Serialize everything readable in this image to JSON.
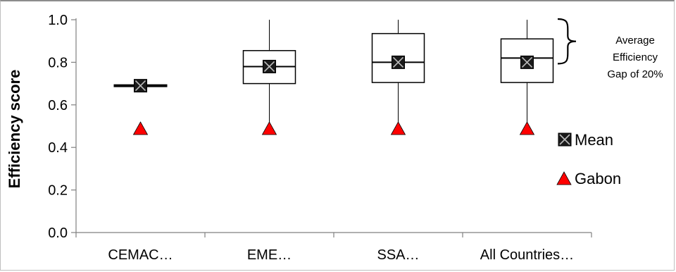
{
  "chart_data": {
    "type": "box",
    "ylabel": "Efficiency score",
    "ylim": [
      0,
      1
    ],
    "yticks": [
      "0.0",
      "0.2",
      "0.4",
      "0.6",
      "0.8",
      "1.0"
    ],
    "categories": [
      "CEMAC…",
      "EME…",
      "SSA…",
      "All Countries…"
    ],
    "boxes": [
      {
        "min": 0.69,
        "q1": 0.69,
        "median": 0.69,
        "q3": 0.69,
        "max": 0.69
      },
      {
        "min": 0.495,
        "q1": 0.7,
        "median": 0.78,
        "q3": 0.855,
        "max": 1.0
      },
      {
        "min": 0.495,
        "q1": 0.705,
        "median": 0.8,
        "q3": 0.935,
        "max": 1.0
      },
      {
        "min": 0.495,
        "q1": 0.705,
        "median": 0.82,
        "q3": 0.91,
        "max": 1.0
      }
    ],
    "series": [
      {
        "name": "Mean",
        "marker": "square-x",
        "color": "#1a1a1a",
        "values": [
          0.69,
          0.78,
          0.8,
          0.8
        ]
      },
      {
        "name": "Gabon",
        "marker": "triangle",
        "color": "#ff0000",
        "values": [
          0.49,
          0.49,
          0.49,
          0.49
        ]
      }
    ],
    "annotation": {
      "lines": [
        "Average",
        "Efficiency",
        "Gap of 20%"
      ],
      "y_from": 1.0,
      "y_to": 0.8
    },
    "legend": "right"
  }
}
